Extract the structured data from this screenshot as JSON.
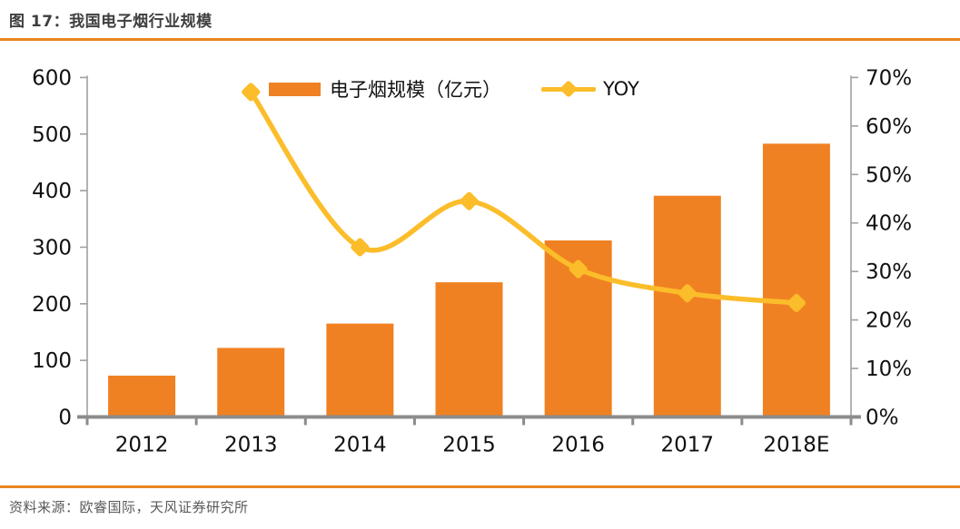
{
  "header": {
    "title": "图 17：我国电子烟行业规模"
  },
  "footer": {
    "source": "资料来源：欧睿国际，天风证券研究所"
  },
  "legend": {
    "bars_label": "电子烟规模（亿元）",
    "yoy_label": "YOY"
  },
  "colors": {
    "bar": "#f08122",
    "line": "#fbbd2a",
    "axis": "#a0a0a0",
    "axis_bottom": "#8c8c8c",
    "tick_label": "#111111",
    "rule": "#e9861f",
    "title": "#3f3f3f",
    "source": "#595959"
  },
  "chart_data": {
    "type": "bar",
    "subtype": "bar+line-combo",
    "title": "我国电子烟行业规模",
    "categories": [
      "2012",
      "2013",
      "2014",
      "2015",
      "2016",
      "2017",
      "2018E"
    ],
    "series": [
      {
        "name": "电子烟规模（亿元）",
        "type": "bar",
        "axis": "left",
        "values": [
          73,
          122,
          165,
          238,
          312,
          391,
          483
        ]
      },
      {
        "name": "YOY",
        "type": "line",
        "axis": "right",
        "values": [
          null,
          67,
          35,
          44.5,
          30.5,
          25.5,
          23.5
        ],
        "unit": "%"
      }
    ],
    "left_axis": {
      "min": 0,
      "max": 600,
      "step": 100,
      "tick_labels": [
        "0",
        "100",
        "200",
        "300",
        "400",
        "500",
        "600"
      ]
    },
    "right_axis": {
      "min": 0,
      "max": 70,
      "step": 10,
      "tick_labels": [
        "0%",
        "10%",
        "20%",
        "30%",
        "40%",
        "50%",
        "60%",
        "70%"
      ]
    },
    "grid": false,
    "legend_position": "top-center"
  }
}
